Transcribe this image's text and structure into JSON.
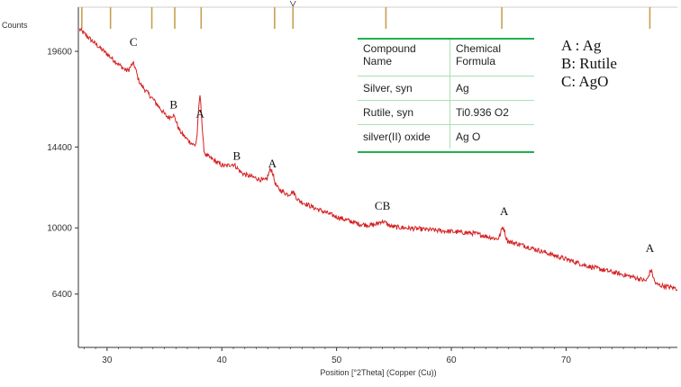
{
  "chart_data": {
    "type": "line",
    "ylabel": "Counts",
    "xlabel": "Position [°2Theta] (Copper (Cu))",
    "xlim": [
      27.5,
      79.7
    ],
    "ylim": [
      3500,
      22000
    ],
    "x_ticks": [
      30,
      40,
      50,
      60,
      70
    ],
    "y_ticks": [
      6400,
      10000,
      14400,
      19600
    ],
    "series": [
      {
        "color": "#d42020",
        "baseline_points": [
          {
            "x": 27.6,
            "y": 20800
          },
          {
            "x": 29.0,
            "y": 20000
          },
          {
            "x": 31.0,
            "y": 18900
          },
          {
            "x": 32.5,
            "y": 18100
          },
          {
            "x": 34.0,
            "y": 17000
          },
          {
            "x": 35.5,
            "y": 15800
          },
          {
            "x": 37.0,
            "y": 14800
          },
          {
            "x": 38.5,
            "y": 14000
          },
          {
            "x": 40.0,
            "y": 13400
          },
          {
            "x": 42.0,
            "y": 12900
          },
          {
            "x": 44.0,
            "y": 12500
          },
          {
            "x": 46.0,
            "y": 11700
          },
          {
            "x": 48.0,
            "y": 11100
          },
          {
            "x": 50.0,
            "y": 10600
          },
          {
            "x": 52.0,
            "y": 10200
          },
          {
            "x": 54.0,
            "y": 10100
          },
          {
            "x": 56.0,
            "y": 10000
          },
          {
            "x": 58.0,
            "y": 9900
          },
          {
            "x": 60.0,
            "y": 9800
          },
          {
            "x": 62.0,
            "y": 9700
          },
          {
            "x": 64.0,
            "y": 9400
          },
          {
            "x": 66.0,
            "y": 9100
          },
          {
            "x": 68.0,
            "y": 8700
          },
          {
            "x": 70.0,
            "y": 8300
          },
          {
            "x": 72.0,
            "y": 7900
          },
          {
            "x": 74.0,
            "y": 7600
          },
          {
            "x": 76.0,
            "y": 7300
          },
          {
            "x": 78.0,
            "y": 6900
          },
          {
            "x": 79.7,
            "y": 6700
          }
        ],
        "peaks": [
          {
            "x": 32.3,
            "height": 700,
            "width": 0.35
          },
          {
            "x": 35.8,
            "height": 500,
            "width": 0.35
          },
          {
            "x": 38.1,
            "height": 2900,
            "width": 0.22
          },
          {
            "x": 41.0,
            "height": 300,
            "width": 0.5
          },
          {
            "x": 44.3,
            "height": 800,
            "width": 0.3
          },
          {
            "x": 46.2,
            "height": 300,
            "width": 0.3
          },
          {
            "x": 54.0,
            "height": 250,
            "width": 0.5
          },
          {
            "x": 64.5,
            "height": 700,
            "width": 0.25
          },
          {
            "x": 77.4,
            "height": 650,
            "width": 0.25
          }
        ]
      }
    ],
    "reference_markers_x": [
      27.8,
      30.3,
      33.9,
      35.9,
      38.2,
      44.6,
      46.2,
      54.3,
      64.4,
      77.3
    ],
    "peak_labels": [
      {
        "text": "C",
        "x": 32.3,
        "y": 19900
      },
      {
        "text": "B",
        "x": 35.8,
        "y": 16500
      },
      {
        "text": "A",
        "x": 38.1,
        "y": 16000
      },
      {
        "text": "B",
        "x": 41.3,
        "y": 13700
      },
      {
        "text": "A",
        "x": 44.4,
        "y": 13300
      },
      {
        "text": "CB",
        "x": 54.0,
        "y": 11000
      },
      {
        "text": "A",
        "x": 64.6,
        "y": 10700
      },
      {
        "text": "A",
        "x": 77.3,
        "y": 8700
      }
    ],
    "table": {
      "headers": [
        "Compound\nName",
        "Chemical\nFormula"
      ],
      "rows": [
        [
          "Silver, syn",
          "Ag"
        ],
        [
          "Rutile, syn",
          "Ti0.936 O2"
        ],
        [
          "silver(II) oxide",
          "Ag O"
        ]
      ]
    },
    "legend_lines": [
      "A : Ag",
      "B:  Rutile",
      "C:  AgO"
    ]
  },
  "colors": {
    "line": "#d42020",
    "marker": "#c8a050",
    "table_border": "#22b04b",
    "axis": "#333333"
  }
}
